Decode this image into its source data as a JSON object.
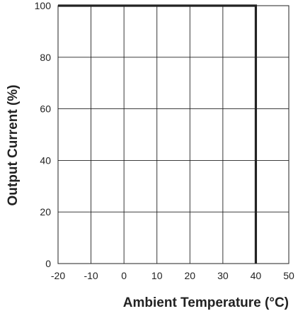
{
  "chart_data": {
    "type": "line",
    "title": "",
    "xlabel": "Ambient Temperature (°C)",
    "ylabel": "Output Current (%)",
    "xlim": [
      -20,
      50
    ],
    "ylim": [
      0,
      100
    ],
    "x_ticks": [
      -20,
      -10,
      0,
      10,
      20,
      30,
      40,
      50
    ],
    "x_tick_labels": [
      "-20",
      "-10",
      "0",
      "10",
      "20",
      "30",
      "40",
      "50"
    ],
    "y_ticks": [
      0,
      20,
      40,
      60,
      80,
      100
    ],
    "y_tick_labels": [
      "0",
      "20",
      "40",
      "60",
      "80",
      "100"
    ],
    "grid": true,
    "legend": "none",
    "series": [
      {
        "x": [
          -20,
          40,
          40
        ],
        "y": [
          100,
          100,
          0
        ],
        "color": "#222222"
      }
    ]
  }
}
